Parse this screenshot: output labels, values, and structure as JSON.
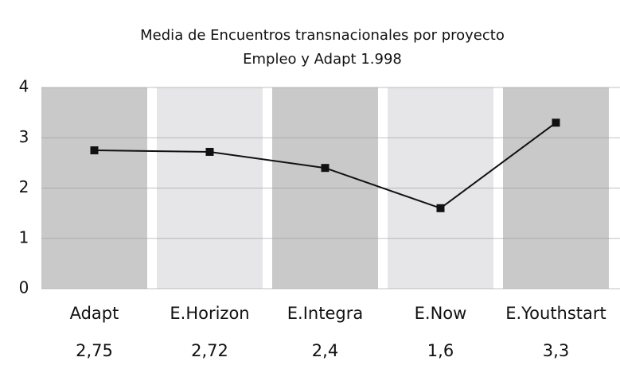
{
  "chart_data": {
    "type": "line",
    "title": "Media de Encuentros transnacionales por proyecto",
    "subtitle": "Empleo y Adapt 1.998",
    "categories": [
      "Adapt",
      "E.Horizon",
      "E.Integra",
      "E.Now",
      "E.Youthstart"
    ],
    "series": [
      {
        "color": "#111111",
        "values": [
          2.75,
          2.72,
          2.4,
          1.6,
          3.3
        ],
        "value_labels": [
          "2,75",
          "2,72",
          "2,4",
          "1,6",
          "3,3"
        ]
      }
    ],
    "band_colors": [
      "#c9c9c9",
      "#e6e6e8"
    ],
    "ylim": [
      0,
      4
    ],
    "yticks": [
      0,
      1,
      2,
      3,
      4
    ],
    "grid": true
  }
}
